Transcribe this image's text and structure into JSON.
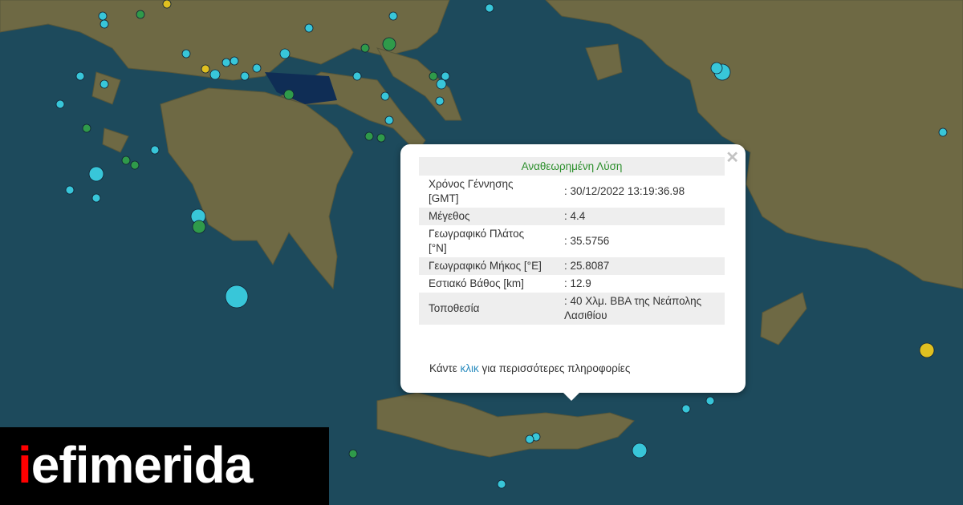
{
  "colors": {
    "sea": "#1d4a5c",
    "land": "#6f6a44",
    "marker_recent": "#38c6d9",
    "marker_older": "#2f9a4a",
    "marker_yellow": "#e0c020",
    "title_green": "#2c8f2c",
    "link": "#2a8cbf"
  },
  "popup": {
    "close_icon": "close-icon",
    "title": "Αναθεωρημένη Λύση",
    "rows": [
      {
        "label": "Χρόνος Γέννησης [GMT]",
        "value": ": 30/12/2022 13:19:36.98"
      },
      {
        "label": "Μέγεθος",
        "value": ": 4.4"
      },
      {
        "label": "Γεωγραφικό Πλάτος [°N]",
        "value": ": 35.5756"
      },
      {
        "label": "Γεωγραφικό Μήκος [°E]",
        "value": ": 25.8087"
      },
      {
        "label": "Εστιακό Βάθος [km]",
        "value": ": 12.9"
      },
      {
        "label": "Τοποθεσία",
        "value": ": 40 Χλμ. ΒΒΑ της Νεάπολης Λασιθίου"
      }
    ],
    "more_prefix": "Κάντε ",
    "more_link": "κλικ",
    "more_suffix": " για περισσότερες πληροφορίες"
  },
  "logo": {
    "first": "i",
    "rest": "efimerida"
  }
}
